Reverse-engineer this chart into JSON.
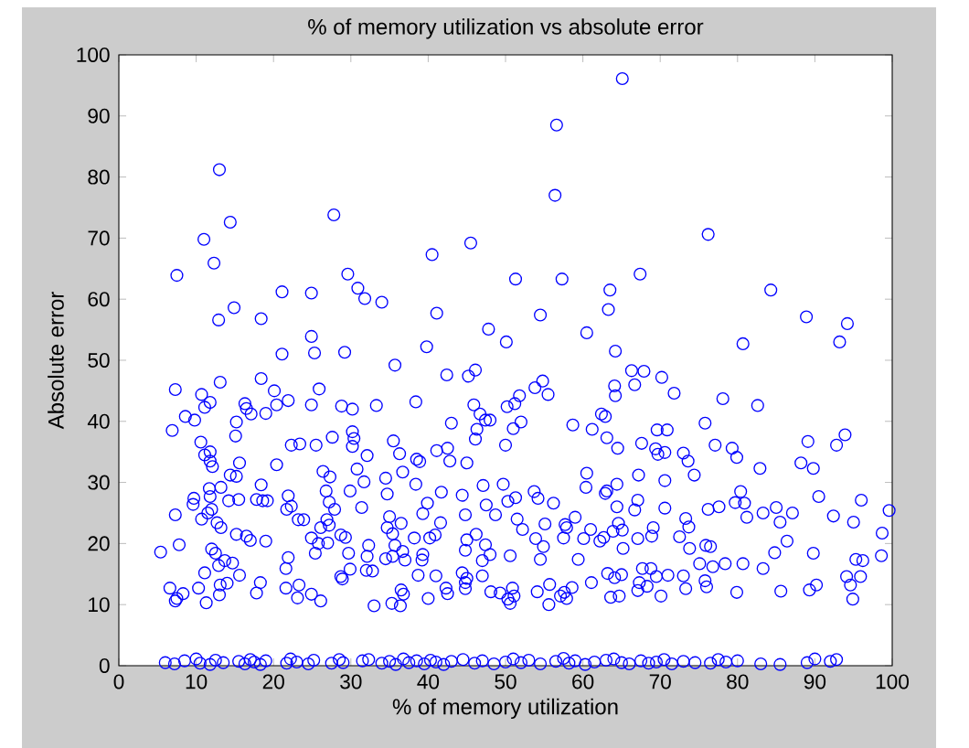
{
  "chart_data": {
    "type": "scatter",
    "title": "% of memory utilization vs absolute error",
    "xlabel": "% of memory utilization",
    "ylabel": "Absolute error",
    "color": "#0000ff",
    "marker": "circle",
    "xlim": [
      0,
      100
    ],
    "ylim": [
      0,
      100
    ],
    "xticks": [
      0,
      10,
      20,
      30,
      40,
      50,
      60,
      70,
      80,
      90,
      100
    ],
    "yticks": [
      0,
      10,
      20,
      30,
      40,
      50,
      60,
      70,
      80,
      90,
      100
    ],
    "x": [
      65.1,
      56.6,
      56.4,
      13.0,
      14.4,
      11.0,
      12.3,
      7.5,
      27.8,
      76.2,
      45.5,
      40.5,
      67.4,
      57.3,
      51.3,
      29.6,
      30.9,
      31.8,
      34.0,
      21.1,
      24.9,
      63.5,
      84.3,
      14.9,
      41.1,
      63.3,
      54.5,
      88.9,
      94.2,
      93.2,
      80.7,
      12.9,
      18.4,
      60.5,
      47.8,
      50.1,
      24.9,
      39.8,
      64.2,
      29.2,
      25.3,
      21.1,
      35.7,
      46.1,
      45.2,
      42.4,
      54.8,
      66.3,
      67.9,
      70.2,
      66.7,
      64.1,
      64.2,
      55.5,
      53.8,
      51.8,
      51.2,
      50.2,
      45.9,
      71.8,
      78.1,
      82.6,
      38.4,
      33.3,
      28.8,
      30.2,
      24.9,
      25.9,
      21.9,
      20.4,
      20.1,
      18.4,
      13.1,
      7.3,
      10.7,
      11.8,
      11.1,
      16.3,
      16.5,
      17.1,
      19.0,
      8.6,
      9.8,
      15.2,
      15.1,
      6.9,
      10.6,
      11.1,
      11.8,
      11.8,
      12.1,
      20.4,
      23.4,
      22.3,
      25.5,
      27.6,
      30.2,
      30.4,
      30.2,
      32.1,
      35.5,
      36.3,
      38.5,
      38.9,
      43.0,
      46.3,
      46.7,
      47.4,
      48.0,
      51.0,
      52.0,
      50.0,
      42.5,
      41.1,
      42.8,
      45.0,
      46.1,
      58.7,
      61.2,
      62.4,
      62.9,
      63.1,
      64.5,
      67.6,
      69.6,
      70.9,
      69.4,
      70.6,
      69.7,
      73.0,
      73.6,
      74.4,
      75.8,
      77.1,
      79.3,
      79.9,
      82.9,
      89.1,
      93.9,
      92.8,
      88.2,
      89.8,
      70.6,
      67.2,
      60.5,
      64.4,
      63.1,
      62.9,
      60.4,
      53.7,
      54.2,
      56.2,
      51.3,
      50.3,
      49.7,
      47.1,
      47.5,
      48.7,
      38.4,
      36.7,
      34.5,
      31.7,
      30.8,
      29.9,
      31.4,
      34.7,
      41.7,
      39.9,
      39.3,
      44.4,
      44.8,
      41.6,
      35.0,
      36.5,
      27.3,
      26.4,
      26.8,
      27.2,
      27.9,
      26.9,
      27.2,
      26.1,
      21.9,
      22.3,
      21.7,
      23.2,
      23.9,
      18.4,
      18.6,
      17.8,
      19.2,
      15.5,
      14.2,
      15.2,
      15.6,
      14.4,
      13.2,
      11.7,
      11.8,
      9.7,
      9.6,
      10.7,
      11.5,
      12.0,
      7.3,
      12.7,
      13.2,
      15.2,
      16.5,
      17.0,
      19.0,
      7.8,
      5.4,
      12.0,
      12.5,
      12.9,
      13.7,
      14.7,
      11.1,
      15.6,
      14.0,
      13.1,
      13.0,
      11.3,
      10.3,
      6.6,
      7.5,
      7.3,
      8.3,
      17.8,
      18.3,
      21.6,
      21.9,
      21.6,
      23.3,
      23.1,
      24.9,
      26.1,
      24.9,
      25.4,
      25.8,
      27.0,
      28.7,
      29.3,
      29.7,
      28.7,
      29.9,
      28.9,
      32.3,
      32.1,
      32.0,
      32.8,
      33.0,
      34.7,
      35.4,
      35.7,
      35.4,
      34.5,
      36.7,
      37.0,
      38.2,
      39.3,
      39.2,
      38.7,
      40.2,
      40.9,
      36.5,
      36.8,
      35.3,
      36.4,
      40.0,
      41.0,
      42.3,
      42.5,
      44.4,
      44.8,
      44.8,
      45.0,
      44.8,
      45.0,
      46.2,
      47.4,
      48.0,
      47.0,
      47.0,
      48.1,
      49.3,
      50.3,
      50.6,
      50.9,
      51.1,
      50.6,
      51.5,
      52.2,
      53.9,
      54.5,
      54.9,
      55.1,
      54.1,
      55.6,
      55.7,
      57.5,
      57.7,
      57.9,
      59.0,
      59.4,
      57.6,
      57.9,
      58.6,
      57.1,
      60.1,
      61.0,
      61.1,
      62.7,
      62.2,
      63.2,
      64.1,
      63.6,
      64.7,
      65.0,
      65.2,
      64.6,
      63.9,
      65.1,
      64.4,
      66.7,
      67.1,
      67.1,
      67.7,
      67.1,
      67.3,
      68.3,
      68.8,
      68.9,
      69.1,
      69.5,
      70.1,
      70.6,
      71.0,
      72.5,
      73.3,
      73.7,
      73.8,
      73.0,
      73.3,
      75.1,
      75.9,
      76.5,
      75.8,
      76.0,
      76.8,
      76.2,
      77.6,
      78.4,
      79.9,
      80.4,
      79.7,
      80.9,
      81.2,
      80.7,
      83.3,
      83.3,
      84.8,
      85.0,
      85.5,
      85.6,
      86.4,
      87.1,
      89.8,
      89.3,
      90.2,
      90.5,
      92.4,
      94.1,
      94.6,
      94.9,
      95.0,
      95.3,
      95.9,
      96.2,
      96.0,
      98.6,
      98.7,
      99.6,
      6.0,
      7.2,
      8.5,
      10.0,
      10.5,
      11.8,
      12.5,
      13.5,
      15.5,
      16.3,
      17.0,
      17.5,
      18.3,
      19.0,
      21.7,
      22.2,
      23.0,
      24.5,
      25.2,
      27.5,
      28.5,
      29.0,
      31.5,
      32.3,
      34.0,
      35.0,
      35.8,
      36.8,
      37.5,
      38.5,
      39.5,
      40.3,
      41.0,
      42.0,
      43.0,
      44.5,
      46.0,
      47.0,
      48.5,
      50.0,
      51.0,
      52.0,
      53.0,
      54.5,
      56.5,
      57.5,
      58.2,
      59.0,
      60.3,
      61.5,
      63.0,
      64.0,
      65.0,
      66.0,
      67.5,
      68.5,
      69.5,
      70.5,
      71.5,
      73.0,
      74.5,
      76.5,
      77.5,
      78.5,
      80.0,
      83.0,
      85.5,
      89.0,
      90.0,
      92.0,
      92.8
    ],
    "values": [
      96.1,
      88.5,
      77.0,
      81.2,
      72.6,
      69.8,
      65.9,
      63.9,
      73.8,
      70.6,
      69.2,
      67.3,
      64.1,
      63.3,
      63.3,
      64.1,
      61.8,
      60.1,
      59.5,
      61.2,
      61.0,
      61.5,
      61.5,
      58.6,
      57.7,
      58.3,
      57.4,
      57.1,
      56.0,
      53.0,
      52.7,
      56.6,
      56.8,
      54.5,
      55.1,
      53.0,
      53.9,
      52.2,
      51.5,
      51.3,
      51.2,
      51.0,
      49.2,
      48.4,
      47.4,
      47.6,
      46.6,
      48.3,
      48.2,
      47.2,
      46.0,
      45.8,
      44.2,
      44.4,
      45.5,
      44.2,
      42.9,
      42.4,
      42.7,
      44.6,
      43.7,
      42.6,
      43.2,
      42.6,
      42.5,
      42.0,
      42.7,
      45.3,
      43.4,
      42.7,
      45.0,
      47.0,
      46.4,
      45.2,
      44.4,
      43.1,
      42.3,
      42.9,
      42.1,
      41.2,
      41.3,
      40.8,
      40.2,
      39.9,
      37.6,
      38.5,
      36.6,
      34.5,
      35.0,
      33.5,
      32.6,
      32.9,
      36.3,
      36.1,
      36.1,
      37.4,
      38.3,
      37.2,
      35.9,
      34.4,
      36.8,
      34.7,
      33.8,
      33.4,
      39.7,
      38.7,
      41.2,
      40.2,
      40.2,
      38.8,
      39.9,
      36.1,
      35.6,
      35.2,
      33.5,
      33.2,
      37.1,
      39.4,
      38.7,
      41.2,
      40.8,
      37.3,
      35.6,
      36.4,
      38.6,
      38.6,
      35.5,
      34.9,
      34.6,
      34.8,
      33.5,
      31.2,
      39.7,
      36.1,
      35.6,
      34.1,
      32.3,
      36.7,
      37.8,
      36.1,
      33.2,
      32.3,
      30.3,
      31.2,
      31.5,
      29.7,
      28.6,
      28.2,
      29.2,
      28.5,
      27.4,
      26.6,
      27.5,
      26.9,
      29.7,
      29.5,
      26.3,
      24.7,
      29.7,
      31.7,
      30.7,
      30.1,
      32.2,
      28.6,
      25.9,
      28.1,
      28.4,
      26.6,
      24.9,
      27.9,
      24.7,
      23.4,
      24.4,
      23.3,
      30.9,
      31.8,
      28.6,
      26.8,
      25.6,
      23.9,
      23.0,
      22.6,
      27.8,
      26.1,
      25.6,
      23.9,
      23.9,
      29.6,
      27.0,
      27.2,
      27.0,
      27.2,
      27.0,
      31.0,
      33.2,
      31.2,
      29.2,
      29.0,
      27.7,
      27.4,
      26.4,
      24.0,
      25.0,
      25.6,
      24.7,
      23.4,
      22.6,
      21.5,
      21.2,
      20.5,
      20.4,
      19.8,
      18.6,
      19.1,
      18.4,
      16.4,
      17.2,
      16.8,
      15.2,
      14.8,
      13.5,
      13.2,
      11.6,
      10.3,
      12.7,
      12.7,
      11.0,
      10.6,
      11.8,
      11.9,
      13.6,
      15.9,
      17.7,
      12.7,
      13.2,
      11.1,
      11.7,
      10.6,
      20.9,
      18.4,
      20.0,
      20.1,
      21.4,
      21.0,
      18.4,
      14.6,
      15.8,
      14.2,
      19.7,
      17.9,
      15.6,
      15.5,
      9.8,
      22.6,
      21.6,
      19.7,
      17.9,
      17.5,
      18.7,
      17.3,
      20.9,
      18.2,
      17.3,
      14.8,
      20.9,
      21.4,
      12.4,
      11.7,
      10.2,
      9.8,
      11.0,
      14.7,
      12.7,
      11.8,
      15.2,
      13.6,
      12.6,
      14.3,
      18.9,
      20.6,
      21.5,
      19.8,
      18.2,
      17.2,
      14.7,
      12.1,
      11.9,
      10.9,
      10.2,
      12.7,
      11.4,
      18.0,
      24.0,
      22.3,
      20.8,
      17.4,
      19.5,
      23.2,
      12.1,
      10.0,
      13.3,
      20.9,
      23.1,
      22.6,
      24.3,
      17.4,
      12.0,
      11.0,
      12.8,
      11.4,
      20.8,
      22.3,
      13.6,
      21.0,
      20.4,
      15.1,
      14.4,
      11.2,
      11.4,
      14.9,
      19.2,
      23.3,
      22.0,
      22.2,
      26.0,
      25.5,
      27.1,
      20.8,
      15.9,
      12.3,
      13.6,
      13.0,
      15.9,
      21.2,
      22.6,
      14.6,
      11.4,
      25.8,
      14.8,
      21.1,
      24.1,
      22.7,
      19.2,
      14.7,
      12.6,
      16.7,
      19.7,
      19.5,
      13.9,
      12.9,
      16.2,
      25.6,
      26.0,
      16.7,
      12.0,
      28.5,
      26.7,
      26.6,
      24.3,
      16.7,
      25.0,
      15.9,
      18.5,
      25.9,
      23.5,
      12.2,
      20.4,
      25.0,
      18.4,
      12.4,
      13.2,
      27.7,
      24.5,
      14.6,
      13.2,
      10.9,
      23.5,
      17.4,
      14.6,
      17.2,
      27.1,
      18.0,
      21.7,
      25.4,
      0.5,
      0.3,
      0.8,
      1.1,
      0.4,
      0.2,
      0.9,
      0.5,
      0.7,
      0.3,
      1.0,
      0.6,
      0.2,
      0.8,
      0.4,
      1.1,
      0.6,
      0.3,
      0.9,
      0.4,
      1.0,
      0.5,
      0.8,
      1.0,
      0.4,
      0.7,
      0.2,
      1.1,
      0.5,
      0.8,
      0.3,
      0.9,
      0.6,
      0.2,
      0.7,
      1.0,
      0.4,
      0.8,
      0.3,
      0.6,
      1.1,
      0.5,
      0.9,
      0.3,
      0.7,
      1.2,
      0.4,
      0.8,
      0.2,
      0.6,
      0.9,
      1.1,
      0.5,
      0.3,
      0.8,
      0.4,
      0.6,
      1.0,
      0.3,
      0.7,
      0.5,
      0.4,
      1.0,
      0.6,
      0.8,
      0.3,
      0.2,
      0.5,
      1.1,
      0.7,
      1.0
    ]
  }
}
